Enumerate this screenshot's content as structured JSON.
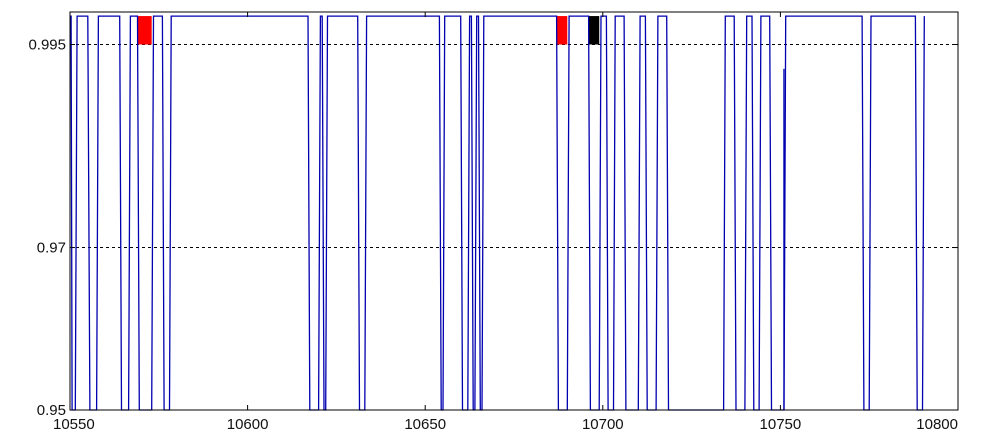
{
  "chart_data": {
    "type": "line",
    "title": "",
    "xlabel": "",
    "ylabel": "",
    "xlim": [
      10550,
      10800
    ],
    "ylim": [
      0.95,
      0.999
    ],
    "x_ticks": [
      10550,
      10600,
      10650,
      10700,
      10750,
      10800
    ],
    "x_tick_labels": [
      "10550",
      "10600",
      "10650",
      "10700",
      "10750",
      "10800"
    ],
    "y_ticks": [
      0.95,
      0.97,
      0.995
    ],
    "y_tick_labels": [
      "0.95",
      "0.97",
      "0.995"
    ],
    "grid": "horizontal dashed at y ticks",
    "legend": "none",
    "colors": {
      "line": "#0000b0",
      "highlight_red": "#ff0000",
      "highlight_black": "#000000",
      "grid": "#000000"
    },
    "series": [
      {
        "color": "#0000b0",
        "x": [
          10550,
          10550.3,
          10550.6,
          10551.5,
          10552,
          10555,
          10555.6,
          10557.5,
          10558,
          10564,
          10564.5,
          10566.5,
          10567,
          10569,
          10569.5,
          10573,
          10573.5,
          10576,
          10576.5,
          10578,
          10578.5,
          10617,
          10617.5,
          10620,
          10620.5,
          10621,
          10621.5,
          10622,
          10622.5,
          10631,
          10631.5,
          10633,
          10633.5,
          10654,
          10654.5,
          10655,
          10655.5,
          10660,
          10660.5,
          10662,
          10662.5,
          10663,
          10663.5,
          10664,
          10664.5,
          10665,
          10665.5,
          10666,
          10666.5,
          10687,
          10687.5,
          10690,
          10690.5,
          10696,
          10696.5,
          10699,
          10699.5,
          10701,
          10701.5,
          10703,
          10703.5,
          10706,
          10706.5,
          10710,
          10710.5,
          10712,
          10712.5,
          10715,
          10715.5,
          10718,
          10718.5,
          10734,
          10734.5,
          10737,
          10737.5,
          10740,
          10740.5,
          10742,
          10742.5,
          10744,
          10744.5,
          10747,
          10747.5,
          10751,
          10751.5,
          10773,
          10773.5,
          10775,
          10775.5,
          10788,
          10788.5,
          10790,
          10790.5
        ],
        "y": [
          0.9985,
          0.9985,
          0.95,
          0.95,
          0.9985,
          0.9985,
          0.95,
          0.95,
          0.9985,
          0.9985,
          0.95,
          0.95,
          0.9985,
          0.9985,
          0.95,
          0.95,
          0.9985,
          0.9985,
          0.95,
          0.95,
          0.9985,
          0.9985,
          0.95,
          0.95,
          0.9985,
          0.9985,
          0.95,
          0.95,
          0.9985,
          0.9985,
          0.95,
          0.95,
          0.9985,
          0.9985,
          0.95,
          0.95,
          0.9985,
          0.9985,
          0.95,
          0.95,
          0.9985,
          0.9985,
          0.95,
          0.95,
          0.9985,
          0.9985,
          0.95,
          0.95,
          0.9985,
          0.9985,
          0.95,
          0.95,
          0.9985,
          0.9985,
          0.95,
          0.95,
          0.9985,
          0.9985,
          0.95,
          0.95,
          0.9985,
          0.9985,
          0.95,
          0.95,
          0.9985,
          0.9985,
          0.95,
          0.95,
          0.9985,
          0.9985,
          0.95,
          0.95,
          0.9985,
          0.9985,
          0.95,
          0.95,
          0.9985,
          0.9985,
          0.95,
          0.95,
          0.9985,
          0.9985,
          0.95,
          0.95,
          0.9985,
          0.9985,
          0.95,
          0.95,
          0.9985,
          0.9985,
          0.95,
          0.95,
          0.9985
        ]
      }
    ],
    "highlights": [
      {
        "x0": 10569,
        "x1": 10573,
        "y0": 0.995,
        "y1": 0.9985,
        "color": "#ff0000"
      },
      {
        "x0": 10687,
        "x1": 10690,
        "y0": 0.995,
        "y1": 0.9985,
        "color": "#ff0000"
      },
      {
        "x0": 10696,
        "x1": 10699,
        "y0": 0.995,
        "y1": 0.9985,
        "color": "#000000"
      }
    ],
    "extra_segments": [
      {
        "x": 10751,
        "y0": 0.95,
        "y1": 0.992
      }
    ]
  }
}
